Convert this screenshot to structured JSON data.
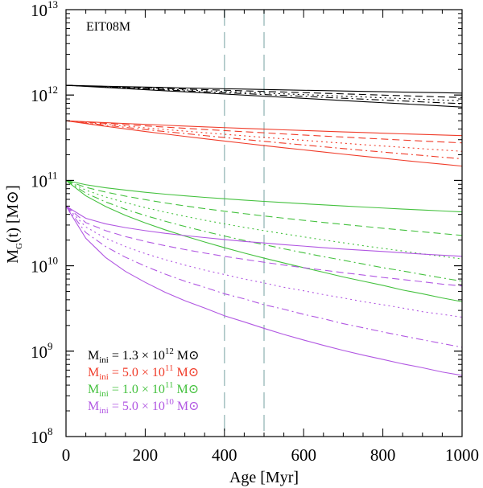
{
  "chart_data": {
    "type": "line",
    "panel_label": "EIT08M",
    "x_axis": {
      "label": "Age [Myr]",
      "lim": [
        0,
        1000
      ],
      "ticks": [
        0,
        200,
        400,
        600,
        800,
        1000
      ],
      "tick_labels": [
        "0",
        "200",
        "400",
        "600",
        "800",
        "1000"
      ]
    },
    "y_axis": {
      "label_main": "M",
      "label_sub": "G",
      "label_rest": "(t) [M",
      "label_sun": "⊙",
      "label_end": "]",
      "scale": "log",
      "lim": [
        100000000,
        10000000000000
      ],
      "ticks": [
        {
          "value": 100000000,
          "base": "10",
          "exp": "8"
        },
        {
          "value": 1000000000,
          "base": "10",
          "exp": "9"
        },
        {
          "value": 10000000000,
          "base": "10",
          "exp": "10"
        },
        {
          "value": 100000000000,
          "base": "10",
          "exp": "11"
        },
        {
          "value": 1000000000000,
          "base": "10",
          "exp": "12"
        },
        {
          "value": 10000000000000,
          "base": "10",
          "exp": "13"
        }
      ]
    },
    "vertical_lines": [
      400,
      500
    ],
    "vertical_line_color": "#a9c4c4",
    "x_samples": [
      0,
      50,
      100,
      150,
      200,
      250,
      300,
      350,
      400,
      450,
      500,
      550,
      600,
      650,
      700,
      750,
      800,
      850,
      900,
      950,
      1000
    ],
    "groups": [
      {
        "color": "#000000",
        "legend": {
          "prefix": "M",
          "sub": "ini",
          "eq": " = 1.3 × 10",
          "exp": "12",
          "unit": " M",
          "sun": "⊙"
        },
        "series": [
          {
            "dash": "solid",
            "values": [
              1300000000000,
              1283000000000,
              1268000000000,
              1253000000000,
              1239000000000,
              1225000000000,
              1211000000000,
              1198000000000,
              1185000000000,
              1173000000000,
              1160000000000,
              1148000000000,
              1137000000000,
              1126000000000,
              1115000000000,
              1104000000000,
              1094000000000,
              1083000000000,
              1073000000000,
              1064000000000,
              1054000000000
            ]
          },
          {
            "dash": "dashed",
            "values": [
              1300000000000,
              1278000000000,
              1257000000000,
              1236000000000,
              1216000000000,
              1196000000000,
              1176000000000,
              1157000000000,
              1139000000000,
              1120000000000,
              1102000000000,
              1084000000000,
              1066000000000,
              1049000000000,
              1032000000000,
              1015000000000,
              998000000000,
              982000000000,
              966000000000,
              950000000000,
              935000000000
            ]
          },
          {
            "dash": "dotted",
            "values": [
              1300000000000,
              1273000000000,
              1247000000000,
              1221000000000,
              1196000000000,
              1171000000000,
              1147000000000,
              1123000000000,
              1100000000000,
              1077000000000,
              1054000000000,
              1032000000000,
              1011000000000,
              990000000000,
              969000000000,
              949000000000,
              929000000000,
              910000000000,
              891000000000,
              873000000000,
              855000000000
            ]
          },
          {
            "dash": "dashdot",
            "values": [
              1300000000000,
              1268000000000,
              1237000000000,
              1207000000000,
              1177000000000,
              1148000000000,
              1120000000000,
              1092000000000,
              1065000000000,
              1039000000000,
              1014000000000,
              989000000000,
              965000000000,
              941000000000,
              918000000000,
              895000000000,
              873000000000,
              852000000000,
              831000000000,
              811000000000,
              791000000000
            ]
          },
          {
            "dash": "solid",
            "values": [
              1300000000000,
              1262000000000,
              1225000000000,
              1190000000000,
              1155000000000,
              1122000000000,
              1090000000000,
              1058000000000,
              1028000000000,
              998000000000,
              969000000000,
              941000000000,
              914000000000,
              888000000000,
              862000000000,
              837000000000,
              813000000000,
              790000000000,
              767000000000,
              745000000000,
              723000000000
            ]
          }
        ]
      },
      {
        "color": "#f03c2a",
        "legend": {
          "prefix": "M",
          "sub": "ini",
          "eq": " = 5.0 × 10",
          "exp": "11",
          "unit": " M",
          "sun": "⊙"
        },
        "series": [
          {
            "dash": "solid",
            "values": [
              500000000000,
              487000000000,
              475000000000,
              464000000000,
              453000000000,
              443000000000,
              433000000000,
              424000000000,
              415000000000,
              407000000000,
              399000000000,
              391000000000,
              384000000000,
              377000000000,
              370000000000,
              364000000000,
              357000000000,
              351000000000,
              346000000000,
              340000000000,
              335000000000
            ]
          },
          {
            "dash": "dashed",
            "values": [
              500000000000,
              482000000000,
              466000000000,
              450000000000,
              435000000000,
              421000000000,
              408000000000,
              395000000000,
              383000000000,
              372000000000,
              361000000000,
              350000000000,
              340000000000,
              331000000000,
              322000000000,
              313000000000,
              305000000000,
              297000000000,
              289000000000,
              282000000000,
              275000000000
            ]
          },
          {
            "dash": "dotted",
            "values": [
              500000000000,
              476000000000,
              454000000000,
              433000000000,
              413000000000,
              395000000000,
              378000000000,
              362000000000,
              347000000000,
              333000000000,
              319000000000,
              307000000000,
              295000000000,
              283000000000,
              273000000000,
              262000000000,
              253000000000,
              244000000000,
              235000000000,
              227000000000,
              219000000000
            ]
          },
          {
            "dash": "dashdot",
            "values": [
              500000000000,
              470000000000,
              443000000000,
              418000000000,
              395000000000,
              373000000000,
              354000000000,
              335000000000,
              318000000000,
              302000000000,
              287000000000,
              273000000000,
              260000000000,
              248000000000,
              236000000000,
              225000000000,
              215000000000,
              205000000000,
              196000000000,
              187000000000,
              179000000000
            ]
          },
          {
            "dash": "solid",
            "values": [
              500000000000,
              463000000000,
              430000000000,
              401000000000,
              374000000000,
              350000000000,
              328000000000,
              308000000000,
              289000000000,
              272000000000,
              256000000000,
              241000000000,
              228000000000,
              215000000000,
              203000000000,
              192000000000,
              182000000000,
              172000000000,
              163000000000,
              155000000000,
              147000000000
            ]
          }
        ]
      },
      {
        "color": "#44c13e",
        "legend": {
          "prefix": "M",
          "sub": "ini",
          "eq": " = 1.0 × 10",
          "exp": "11",
          "unit": " M",
          "sun": "⊙"
        },
        "series": [
          {
            "dash": "solid",
            "values": [
              100000000000,
              89000000000,
              82000000000,
              77000000000,
              72600000000,
              69000000000,
              66000000000,
              63300000000,
              61000000000,
              58800000000,
              56800000000,
              55000000000,
              53300000000,
              51700000000,
              50200000000,
              48800000000,
              47500000000,
              46200000000,
              45000000000,
              43900000000,
              42800000000
            ]
          },
          {
            "dash": "dashed",
            "values": [
              100000000000,
              83000000000,
              73000000000,
              65500000000,
              59500000000,
              54500000000,
              50300000000,
              46700000000,
              43600000000,
              40800000000,
              38300000000,
              36100000000,
              34100000000,
              32200000000,
              30500000000,
              29000000000,
              27500000000,
              26200000000,
              25000000000,
              23800000000,
              22700000000
            ]
          },
          {
            "dash": "dotted",
            "values": [
              100000000000,
              77000000000,
              64000000000,
              55000000000,
              48000000000,
              42500000000,
              38000000000,
              34200000000,
              31000000000,
              28200000000,
              25800000000,
              23700000000,
              21800000000,
              20100000000,
              18600000000,
              17200000000,
              16000000000,
              14900000000,
              13800000000,
              12900000000,
              12000000000
            ]
          },
          {
            "dash": "dashdot",
            "values": [
              100000000000,
              71000000000,
              56000000000,
              46000000000,
              38800000000,
              33300000000,
              28900000000,
              25300000000,
              22300000000,
              19800000000,
              17700000000,
              15800000000,
              14200000000,
              12800000000,
              11600000000,
              10500000000,
              9500000000,
              8700000000,
              7900000000,
              7200000000,
              6600000000
            ]
          },
          {
            "dash": "solid",
            "values": [
              100000000000,
              66000000000,
              49500000000,
              39000000000,
              31800000000,
              26400000000,
              22300000000,
              19000000000,
              16300000000,
              14100000000,
              12300000000,
              10800000000,
              9500000000,
              8400000000,
              7400000000,
              6600000000,
              5900000000,
              5200000000,
              4700000000,
              4200000000,
              3800000000
            ]
          }
        ]
      },
      {
        "color": "#b157e2",
        "legend": {
          "prefix": "M",
          "sub": "ini",
          "eq": " = 5.0 × 10",
          "exp": "10",
          "unit": " M",
          "sun": "⊙"
        },
        "series": [
          {
            "dash": "solid",
            "values": [
              50000000000,
              36000000000,
              31000000000,
              28000000000,
              25800000000,
              24000000000,
              22600000000,
              21400000000,
              20300000000,
              19300000000,
              18500000000,
              17700000000,
              17000000000,
              16300000000,
              15700000000,
              15200000000,
              14700000000,
              14200000000,
              13700000000,
              13300000000,
              12900000000
            ]
          },
          {
            "dash": "dashed",
            "values": [
              50000000000,
              32000000000,
              25800000000,
              22000000000,
              19300000000,
              17200000000,
              15500000000,
              14100000000,
              12900000000,
              11900000000,
              11000000000,
              10200000000,
              9500000000,
              8900000000,
              8300000000,
              7800000000,
              7300000000,
              6900000000,
              6500000000,
              6100000000,
              5800000000
            ]
          },
          {
            "dash": "dotted",
            "values": [
              50000000000,
              28500000000,
              21000000000,
              16800000000,
              13900000000,
              11800000000,
              10200000000,
              8900000000,
              7900000000,
              7000000000,
              6300000000,
              5600000000,
              5100000000,
              4600000000,
              4200000000,
              3800000000,
              3500000000,
              3200000000,
              2900000000,
              2700000000,
              2500000000
            ]
          },
          {
            "dash": "dashdot",
            "values": [
              50000000000,
              24500000000,
              16800000000,
              12600000000,
              9900000000,
              8000000000,
              6600000000,
              5600000000,
              4700000000,
              4100000000,
              3500000000,
              3100000000,
              2700000000,
              2400000000,
              2100000000,
              1880000000,
              1680000000,
              1510000000,
              1360000000,
              1230000000,
              1110000000
            ]
          },
          {
            "dash": "solid",
            "values": [
              50000000000,
              21000000000,
              12500000000,
              8600000000,
              6400000000,
              4900000000,
              3900000000,
              3200000000,
              2600000000,
              2200000000,
              1850000000,
              1570000000,
              1350000000,
              1170000000,
              1020000000,
              900000000,
              800000000,
              710000000,
              640000000,
              570000000,
              520000000
            ]
          }
        ]
      }
    ]
  }
}
